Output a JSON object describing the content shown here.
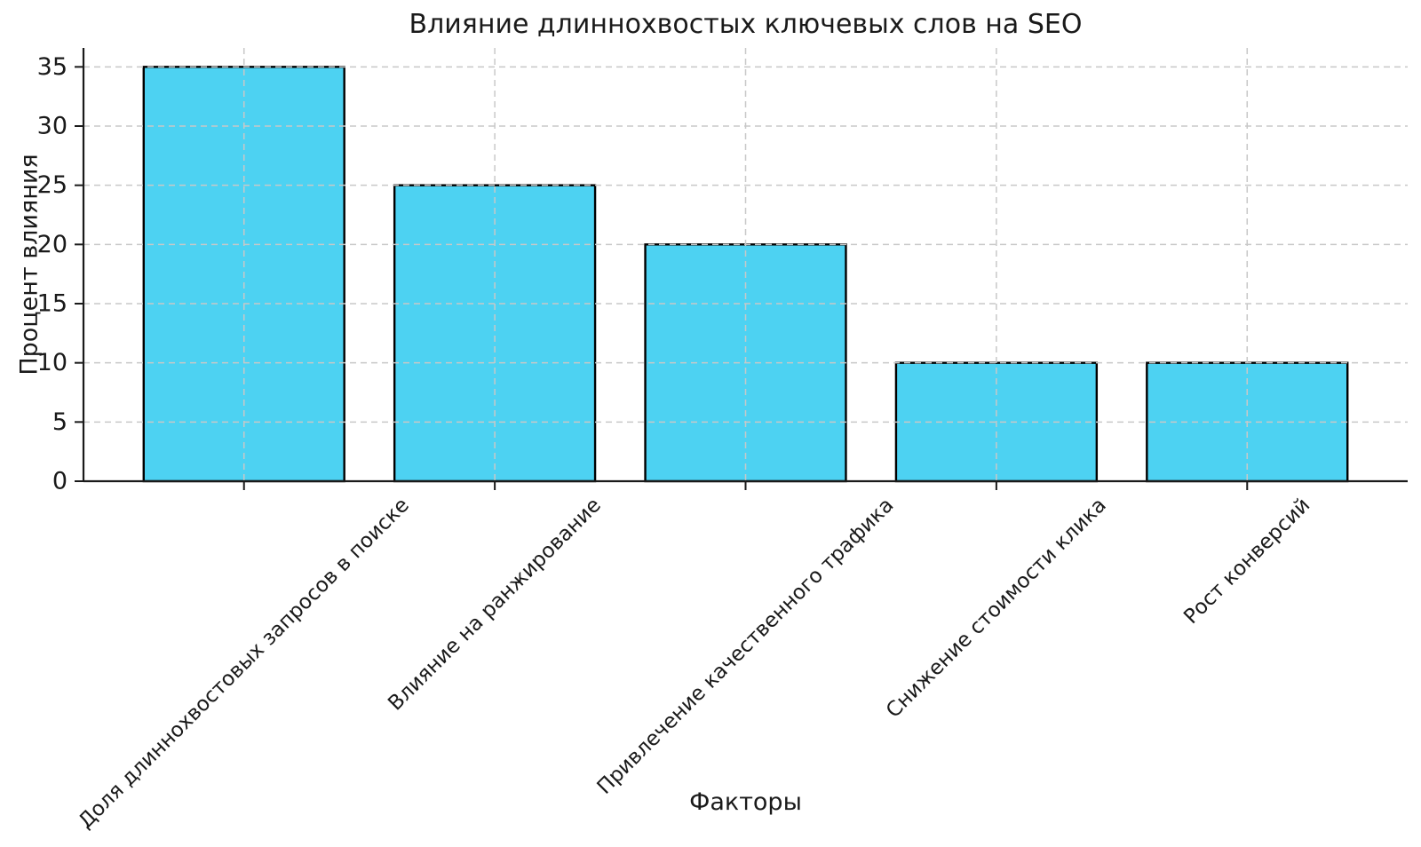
{
  "chart_data": {
    "type": "bar",
    "title": "Влияние длиннохвостых ключевых слов на SEO",
    "xlabel": "Факторы",
    "ylabel": "Процент влияния",
    "categories": [
      "Доля длиннохвостовых запросов в поиске",
      "Влияние на ранжирование",
      "Привлечение качественного трафика",
      "Снижение стоимости клика",
      "Рост конверсий"
    ],
    "values": [
      35,
      25,
      20,
      10,
      10
    ],
    "yticks": [
      0,
      5,
      10,
      15,
      20,
      25,
      30,
      35
    ],
    "ylim": [
      0,
      36.6
    ],
    "xtick_rotation_deg": 45,
    "legend": "none",
    "grid": "dashed, both axes, drawn over bars",
    "bar_color": "#4DD2F2",
    "bar_edge_color": "#000000",
    "grid_color": "#c8c8c8",
    "axis_color": "#1a1a1a",
    "text_color": "#1a1a1a",
    "background_color": "#ffffff"
  }
}
